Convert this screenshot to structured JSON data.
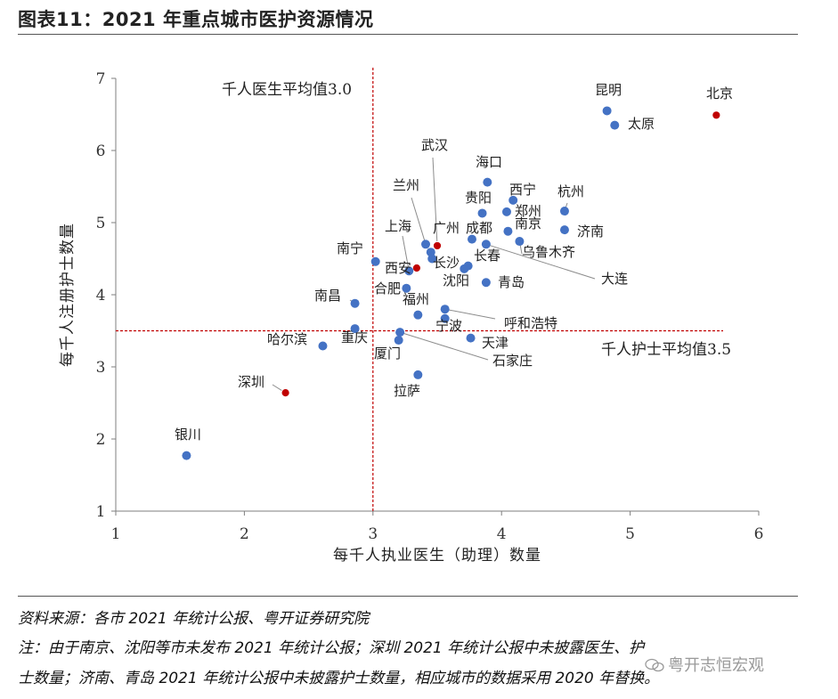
{
  "figure": {
    "title": "图表11：2021 年重点城市医护资源情况",
    "source": "资料来源：各市 2021 年统计公报、粤开证券研究院",
    "note_line1": "注：由于南京、沈阳等市未发布 2021 年统计公报；深圳 2021 年统计公报中未披露医生、护",
    "note_line2": "士数量；济南、青岛 2021 年统计公报中未披露护士数量，相应城市的数据采用 2020 年替换。",
    "watermark": "粤开志恒宏观"
  },
  "colors": {
    "blue": "#4472C4",
    "red": "#C00000",
    "ref_line": "#C00000",
    "axis": "#7f7f7f",
    "leader": "#8c8c8c"
  },
  "chart_data": {
    "type": "scatter",
    "xlabel": "每千人执业医生（助理）数量",
    "ylabel": "每千人注册护士数量",
    "xlim": [
      1,
      6
    ],
    "ylim": [
      1,
      7
    ],
    "xticks": [
      "1",
      "2",
      "3",
      "4",
      "5",
      "6"
    ],
    "yticks": [
      "1",
      "2",
      "3",
      "4",
      "5",
      "6",
      "7"
    ],
    "grid": false,
    "reference_lines": {
      "doctor_avg": {
        "x": 3.0,
        "label": "千人医生平均值3.0"
      },
      "nurse_avg": {
        "y": 3.5,
        "label": "千人护士平均值3.5"
      }
    },
    "points": [
      {
        "city": "北京",
        "x": 5.67,
        "y": 6.49,
        "highlight": true
      },
      {
        "city": "昆明",
        "x": 4.82,
        "y": 6.55,
        "highlight": false
      },
      {
        "city": "太原",
        "x": 4.88,
        "y": 6.35,
        "highlight": false
      },
      {
        "city": "海口",
        "x": 3.89,
        "y": 5.56,
        "highlight": false
      },
      {
        "city": "西宁",
        "x": 4.09,
        "y": 5.31,
        "highlight": false
      },
      {
        "city": "杭州",
        "x": 4.49,
        "y": 5.16,
        "highlight": false
      },
      {
        "city": "郑州",
        "x": 4.04,
        "y": 5.15,
        "highlight": false
      },
      {
        "city": "贵阳",
        "x": 3.85,
        "y": 5.13,
        "highlight": false
      },
      {
        "city": "济南",
        "x": 4.49,
        "y": 4.9,
        "highlight": false
      },
      {
        "city": "南京",
        "x": 4.05,
        "y": 4.88,
        "highlight": false
      },
      {
        "city": "成都",
        "x": 3.77,
        "y": 4.77,
        "highlight": false
      },
      {
        "city": "乌鲁木齐",
        "x": 4.14,
        "y": 4.74,
        "highlight": false
      },
      {
        "city": "大连",
        "x": 3.88,
        "y": 4.7,
        "highlight": false
      },
      {
        "city": "武汉",
        "x": 3.5,
        "y": 4.68,
        "highlight": true
      },
      {
        "city": "兰州",
        "x": 3.41,
        "y": 4.7,
        "highlight": false
      },
      {
        "city": "广州",
        "x": 3.45,
        "y": 4.59,
        "highlight": false
      },
      {
        "city": "长沙",
        "x": 3.46,
        "y": 4.5,
        "highlight": false
      },
      {
        "city": "南宁",
        "x": 3.02,
        "y": 4.46,
        "highlight": false
      },
      {
        "city": "长春",
        "x": 3.74,
        "y": 4.4,
        "highlight": false
      },
      {
        "city": "沈阳",
        "x": 3.71,
        "y": 4.36,
        "highlight": false
      },
      {
        "city": "西安",
        "x": 3.34,
        "y": 4.37,
        "highlight": true
      },
      {
        "city": "上海",
        "x": 3.28,
        "y": 4.33,
        "highlight": false
      },
      {
        "city": "青岛",
        "x": 3.88,
        "y": 4.17,
        "highlight": false
      },
      {
        "city": "合肥",
        "x": 3.26,
        "y": 4.09,
        "highlight": false
      },
      {
        "city": "南昌",
        "x": 2.86,
        "y": 3.88,
        "highlight": false
      },
      {
        "city": "呼和浩特",
        "x": 3.56,
        "y": 3.8,
        "highlight": false
      },
      {
        "city": "福州",
        "x": 3.35,
        "y": 3.72,
        "highlight": false
      },
      {
        "city": "宁波",
        "x": 3.56,
        "y": 3.67,
        "highlight": false
      },
      {
        "city": "重庆",
        "x": 2.86,
        "y": 3.53,
        "highlight": false
      },
      {
        "city": "石家庄",
        "x": 3.21,
        "y": 3.48,
        "highlight": false
      },
      {
        "city": "天津",
        "x": 3.76,
        "y": 3.4,
        "highlight": false
      },
      {
        "city": "厦门",
        "x": 3.2,
        "y": 3.37,
        "highlight": false
      },
      {
        "city": "哈尔滨",
        "x": 2.61,
        "y": 3.29,
        "highlight": false
      },
      {
        "city": "拉萨",
        "x": 3.35,
        "y": 2.89,
        "highlight": false
      },
      {
        "city": "深圳",
        "x": 2.32,
        "y": 2.64,
        "highlight": true
      },
      {
        "city": "银川",
        "x": 1.55,
        "y": 1.77,
        "highlight": false
      }
    ]
  }
}
